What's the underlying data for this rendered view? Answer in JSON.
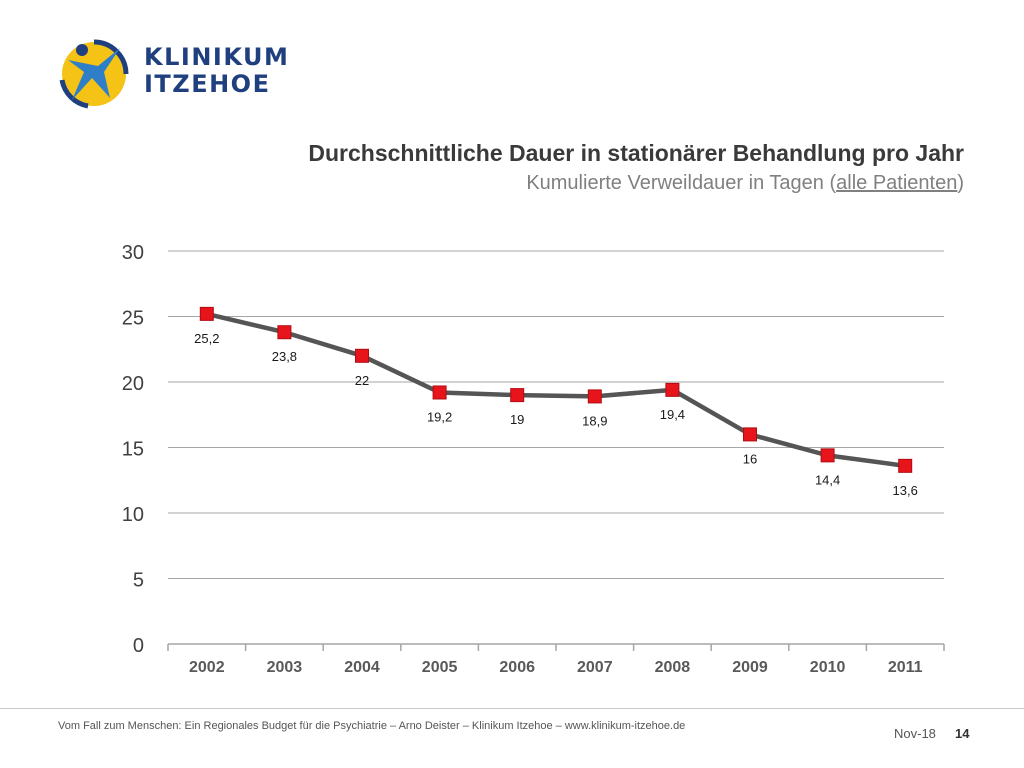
{
  "logo": {
    "line1": "KLINIKUM",
    "line2": "ITZEHOE"
  },
  "chart_data": {
    "type": "line",
    "title": "Durchschnittliche Dauer in stationärer Behandlung pro Jahr",
    "subtitle_prefix": "Kumulierte Verweildauer in Tagen (",
    "subtitle_link": "alle Patienten",
    "subtitle_suffix": ")",
    "categories": [
      "2002",
      "2003",
      "2004",
      "2005",
      "2006",
      "2007",
      "2008",
      "2009",
      "2010",
      "2011"
    ],
    "values": [
      25.2,
      23.8,
      22,
      19.2,
      19,
      18.9,
      19.4,
      16,
      14.4,
      13.6
    ],
    "value_labels": [
      "25,2",
      "23,8",
      "22",
      "19,2",
      "19",
      "18,9",
      "19,4",
      "16",
      "14,4",
      "13,6"
    ],
    "ylim": [
      0,
      30
    ],
    "yticks": [
      0,
      5,
      10,
      15,
      20,
      25,
      30
    ],
    "grid": true,
    "line_color": "#555555",
    "marker_color": "#e8141c"
  },
  "footer": {
    "text": "Vom Fall zum Menschen: Ein Regionales Budget für die Psychiatrie  – Arno Deister – Klinikum Itzehoe – www.klinikum-itzehoe.de",
    "date": "Nov-18",
    "page": "14"
  }
}
